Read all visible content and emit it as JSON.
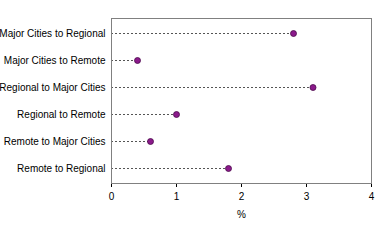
{
  "chart_data": {
    "type": "dot",
    "orientation": "horizontal",
    "categories": [
      "Major Cities to Regional",
      "Major Cities to Remote",
      "Regional to Major Cities",
      "Regional to Remote",
      "Remote to Major Cities",
      "Remote to Regional"
    ],
    "values": [
      2.8,
      0.4,
      3.1,
      1.0,
      0.6,
      1.8
    ],
    "color": "#8b1a8b",
    "marker": "circle",
    "line_style": "dashed",
    "x_label": "%",
    "xlim": [
      0,
      4
    ],
    "xticks": [
      0,
      1,
      2,
      3,
      4
    ],
    "grid": false
  }
}
